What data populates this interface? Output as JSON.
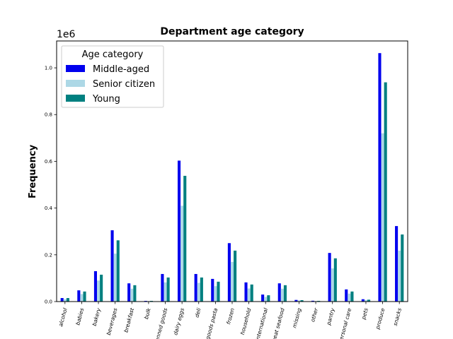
{
  "chart_data": {
    "type": "bar",
    "title": "Department age category",
    "xlabel": "",
    "ylabel": "Frequency",
    "y_multiplier": "1e6",
    "ylim": [
      0,
      1115000
    ],
    "yticks": [
      0,
      200000,
      400000,
      600000,
      800000,
      1000000
    ],
    "ytick_labels": [
      "0.0",
      "0.2",
      "0.4",
      "0.6",
      "0.8",
      "1.0"
    ],
    "grid": false,
    "legend": {
      "title": "Age category",
      "placement": "top-left"
    },
    "categories": [
      "alcohol",
      "babies",
      "bakery",
      "beverages",
      "breakfast",
      "bulk",
      "canned goods",
      "dairy eggs",
      "deli",
      "dry goods pasta",
      "frozen",
      "household",
      "international",
      "meat seafood",
      "missing",
      "other",
      "pantry",
      "personal care",
      "pets",
      "produce",
      "snacks"
    ],
    "series": [
      {
        "name": "Middle-aged",
        "color": "#0000ee",
        "values": [
          15000,
          48000,
          130000,
          305000,
          78000,
          3000,
          118000,
          603000,
          118000,
          97000,
          250000,
          82000,
          30000,
          78000,
          7000,
          3500,
          208000,
          52000,
          10000,
          1063000,
          323000
        ]
      },
      {
        "name": "Senior citizen",
        "color": "#add8e6",
        "values": [
          10000,
          32000,
          90000,
          205000,
          55000,
          2000,
          82000,
          410000,
          80000,
          66000,
          170000,
          56000,
          20000,
          55000,
          5000,
          2000,
          142000,
          34000,
          7000,
          720000,
          218000
        ]
      },
      {
        "name": "Young",
        "color": "#008080",
        "values": [
          15000,
          43000,
          115000,
          262000,
          70000,
          3000,
          103000,
          538000,
          103000,
          85000,
          218000,
          73000,
          27000,
          70000,
          6000,
          3000,
          185000,
          43000,
          8000,
          938000,
          287000
        ]
      }
    ]
  }
}
